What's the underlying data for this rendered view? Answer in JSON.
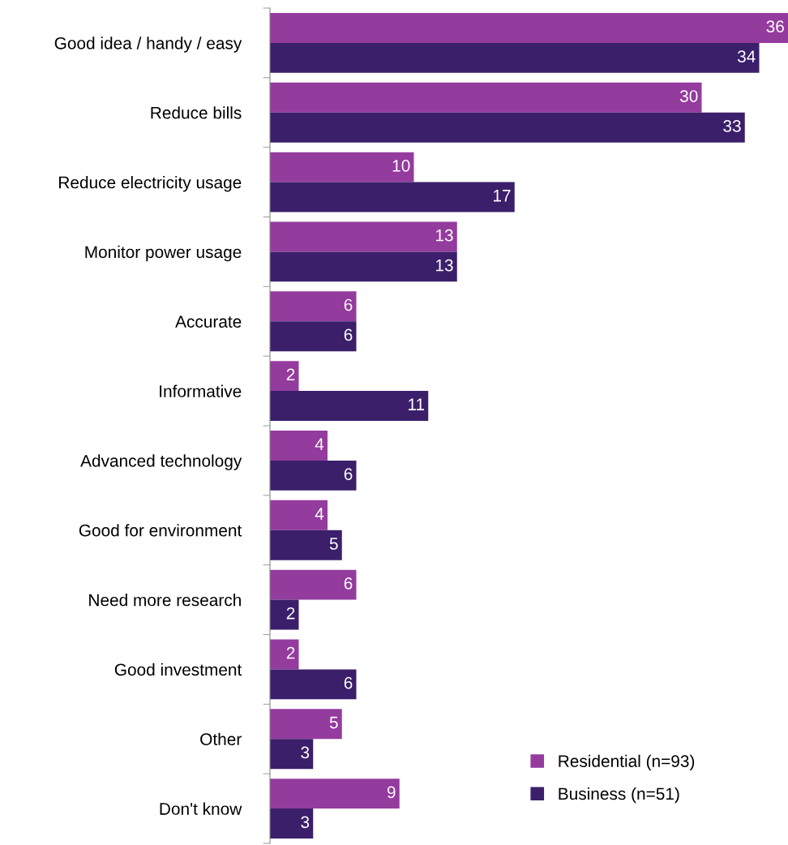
{
  "chart_data": {
    "type": "bar",
    "orientation": "horizontal",
    "data_labels": true,
    "legend": "bottom right",
    "grid": false,
    "categories": [
      "Good idea / handy / easy",
      "Reduce bills",
      "Reduce electricity usage",
      "Monitor power usage",
      "Accurate",
      "Informative",
      "Advanced technology",
      "Good for environment",
      "Need more research",
      "Good investment",
      "Other",
      "Don't know"
    ],
    "series": [
      {
        "name": "Residential (n=93)",
        "color": "#943b9e",
        "values": [
          36,
          30,
          10,
          13,
          6,
          2,
          4,
          4,
          6,
          2,
          5,
          9
        ]
      },
      {
        "name": "Business (n=51)",
        "color": "#3b1f6b",
        "values": [
          34,
          33,
          17,
          13,
          6,
          11,
          6,
          5,
          2,
          6,
          3,
          3
        ]
      }
    ]
  }
}
